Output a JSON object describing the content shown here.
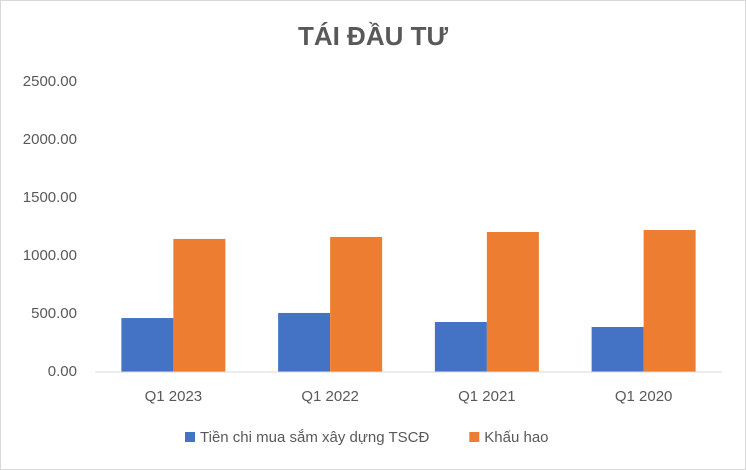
{
  "chart_data": {
    "type": "bar",
    "title": "TÁI ĐẦU TƯ",
    "categories": [
      "Q1 2023",
      "Q1 2022",
      "Q1 2021",
      "Q1 2020"
    ],
    "series": [
      {
        "name": "Tiền chi mua sắm xây dựng TSCĐ",
        "color": "#4472c4",
        "values": [
          465,
          509,
          431,
          388
        ]
      },
      {
        "name": "Khấu hao",
        "color": "#ed7d31",
        "values": [
          1147,
          1164,
          1207,
          1224
        ]
      }
    ],
    "ylim": [
      0,
      2500
    ],
    "yticks": [
      {
        "value": 0,
        "label": "0.00"
      },
      {
        "value": 500,
        "label": "500.00"
      },
      {
        "value": 1000,
        "label": "1000.00"
      },
      {
        "value": 1500,
        "label": "1500.00"
      },
      {
        "value": 2000,
        "label": "2000.00"
      },
      {
        "value": 2500,
        "label": "2500.00"
      }
    ],
    "grid": false,
    "legend": "bottom"
  }
}
